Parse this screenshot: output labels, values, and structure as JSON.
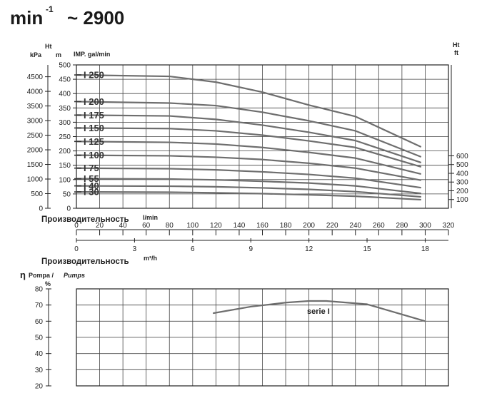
{
  "header": {
    "speed_prefix": "min",
    "speed_exponent": "-1",
    "speed_value": "~ 2900"
  },
  "chart_data": [
    {
      "type": "line",
      "x_unit_label": "IMP. gal/min",
      "y_units": {
        "kpa": "kPa",
        "ht": "Ht",
        "m": "m",
        "ht_ft_top": "Ht",
        "ft": "ft"
      },
      "kpa_ticks": [
        0,
        500,
        1000,
        1500,
        2000,
        2500,
        3000,
        3500,
        4000,
        4500
      ],
      "m_ticks": [
        0,
        50,
        100,
        150,
        200,
        250,
        300,
        350,
        400,
        450,
        500
      ],
      "m_ylim": [
        0,
        500
      ],
      "ft_ticks": [
        100,
        200,
        300,
        400,
        500,
        600
      ],
      "x_lmin_label": "Производительность",
      "x_lmin_unit": "l/min",
      "x_lmin_ticks": [
        0,
        20,
        40,
        60,
        80,
        100,
        120,
        140,
        160,
        180,
        200,
        220,
        240,
        260,
        280,
        300,
        320
      ],
      "x_m3h_label": "Производительность",
      "x_m3h_unit": "m³/h",
      "x_m3h_ticks": [
        0,
        3,
        6,
        9,
        12,
        15,
        18
      ],
      "xlim": [
        0,
        320
      ],
      "grid": true,
      "series": [
        {
          "name": "I 250",
          "x": [
            0,
            80,
            120,
            160,
            200,
            240,
            296
          ],
          "values": [
            465,
            460,
            440,
            405,
            360,
            320,
            215
          ]
        },
        {
          "name": "I 200",
          "x": [
            0,
            80,
            120,
            160,
            200,
            240,
            296
          ],
          "values": [
            372,
            367,
            358,
            335,
            305,
            270,
            180
          ]
        },
        {
          "name": "I 175",
          "x": [
            0,
            80,
            120,
            160,
            200,
            240,
            296
          ],
          "values": [
            325,
            322,
            310,
            290,
            265,
            236,
            160
          ]
        },
        {
          "name": "I 150",
          "x": [
            0,
            80,
            120,
            160,
            200,
            240,
            296
          ],
          "values": [
            280,
            278,
            270,
            255,
            235,
            212,
            145
          ]
        },
        {
          "name": "I 125",
          "x": [
            0,
            80,
            120,
            160,
            200,
            240,
            296
          ],
          "values": [
            233,
            230,
            224,
            212,
            195,
            175,
            120
          ]
        },
        {
          "name": "I 100",
          "x": [
            0,
            80,
            120,
            160,
            200,
            240,
            296
          ],
          "values": [
            185,
            183,
            178,
            170,
            157,
            140,
            98
          ]
        },
        {
          "name": "I 75",
          "x": [
            0,
            80,
            120,
            160,
            200,
            240,
            296
          ],
          "values": [
            140,
            138,
            134,
            127,
            118,
            105,
            72
          ]
        },
        {
          "name": "I 55",
          "x": [
            0,
            80,
            120,
            160,
            200,
            240,
            296
          ],
          "values": [
            103,
            102,
            99,
            94,
            88,
            78,
            52
          ]
        },
        {
          "name": "I 40",
          "x": [
            0,
            80,
            120,
            160,
            200,
            240,
            296
          ],
          "values": [
            78,
            77,
            75,
            71,
            66,
            58,
            40
          ]
        },
        {
          "name": "I 30",
          "x": [
            0,
            80,
            120,
            160,
            200,
            240,
            296
          ],
          "values": [
            57,
            56,
            54,
            51,
            47,
            42,
            30
          ]
        }
      ]
    },
    {
      "type": "line",
      "y_symbol": "η",
      "y_title_it": "Pompa /",
      "y_title_en": "Pumps",
      "y_unit": "%",
      "y_ticks": [
        20,
        30,
        40,
        50,
        60,
        70,
        80
      ],
      "ylim": [
        20,
        80
      ],
      "xlim": [
        0,
        320
      ],
      "grid": true,
      "series_label": "serie I",
      "series": [
        {
          "name": "serie I",
          "x": [
            118,
            150,
            180,
            200,
            215,
            250,
            300
          ],
          "values": [
            65,
            69,
            71.5,
            72.5,
            72.5,
            70.5,
            60
          ]
        }
      ]
    }
  ]
}
